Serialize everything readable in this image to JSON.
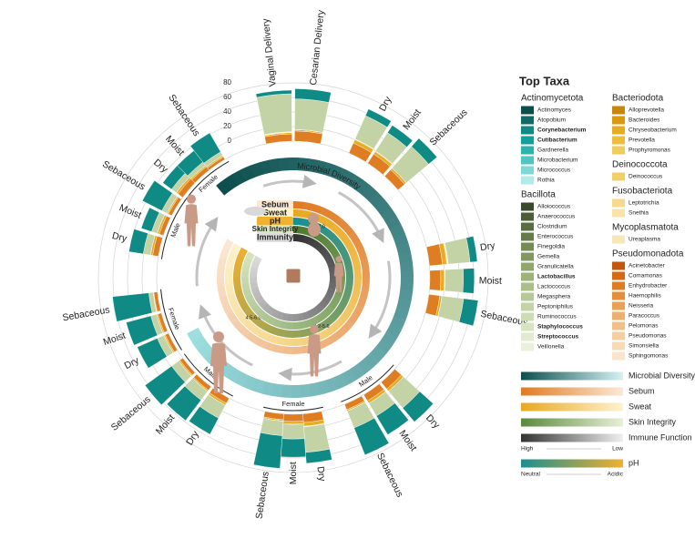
{
  "chart_data": {
    "type": "radial-stacked-bar",
    "ylim": [
      0,
      80
    ],
    "yticks": [
      0,
      20,
      40,
      60,
      80
    ],
    "grid": true,
    "legend_title": "Top Taxa",
    "series": [
      {
        "name": "Actinomycetota",
        "color": "#0f8a84",
        "taxa": [
          {
            "name": "Actinomyces",
            "color": "#0b4f4c"
          },
          {
            "name": "Atopobium",
            "color": "#0e6b66"
          },
          {
            "name": "Corynebacterium",
            "color": "#0f8a84",
            "bold": true
          },
          {
            "name": "Cutibacterium",
            "color": "#11a09a",
            "bold": true
          },
          {
            "name": "Gardnerella",
            "color": "#2bb3ad"
          },
          {
            "name": "Microbacterium",
            "color": "#4fc6c2"
          },
          {
            "name": "Micrococcus",
            "color": "#7dd8d6"
          },
          {
            "name": "Rothia",
            "color": "#b2eaea"
          }
        ]
      },
      {
        "name": "Bacillota",
        "color": "#c3d3a5",
        "taxa": [
          {
            "name": "Alloiococcus",
            "color": "#3b4a2d"
          },
          {
            "name": "Anaerococcus",
            "color": "#4b5e37"
          },
          {
            "name": "Clostridium",
            "color": "#586d40"
          },
          {
            "name": "Enterococcus",
            "color": "#657c4a"
          },
          {
            "name": "Finegoldia",
            "color": "#738b55"
          },
          {
            "name": "Gemella",
            "color": "#819960"
          },
          {
            "name": "Granulicatella",
            "color": "#8fa66d"
          },
          {
            "name": "Lactobacillus",
            "color": "#9db37a",
            "bold": true
          },
          {
            "name": "Lactococcus",
            "color": "#aabf88"
          },
          {
            "name": "Megasphera",
            "color": "#b7c996"
          },
          {
            "name": "Peptoniphilus",
            "color": "#c3d3a5"
          },
          {
            "name": "Ruminococcus",
            "color": "#cedcb4"
          },
          {
            "name": "Staphylococcus",
            "color": "#d8e3c2",
            "bold": true
          },
          {
            "name": "Streptococcus",
            "color": "#e2eacf",
            "bold": true
          },
          {
            "name": "Veillonella",
            "color": "#eaf0dc"
          }
        ]
      },
      {
        "name": "Bacteriodota",
        "color": "#e6ad22",
        "taxa": [
          {
            "name": "Alloprevotella",
            "color": "#c8860b"
          },
          {
            "name": "Bacteroides",
            "color": "#d99a10"
          },
          {
            "name": "Chryseobacterium",
            "color": "#e6ad22"
          },
          {
            "name": "Prevotella",
            "color": "#ecbd3e"
          },
          {
            "name": "Prophyromonas",
            "color": "#f1cb5c"
          }
        ]
      },
      {
        "name": "Deinococcota",
        "color": "#f3cf6a",
        "taxa": [
          {
            "name": "Deinococcus",
            "color": "#f3cf6a"
          }
        ]
      },
      {
        "name": "Fusobacteriota",
        "color": "#f6d98a",
        "taxa": [
          {
            "name": "Leptotrichia",
            "color": "#f6d98a"
          },
          {
            "name": "Snethia",
            "color": "#f8e3a8"
          }
        ]
      },
      {
        "name": "Mycoplasmatota",
        "color": "#f9e7b8",
        "taxa": [
          {
            "name": "Ureaplasma",
            "color": "#f9e7b8"
          }
        ]
      },
      {
        "name": "Pseudomonadota",
        "color": "#df7d22",
        "taxa": [
          {
            "name": "Acinetobacter",
            "color": "#c2580c"
          },
          {
            "name": "Comamonas",
            "color": "#d46a14"
          },
          {
            "name": "Enhydrobacter",
            "color": "#df7d22"
          },
          {
            "name": "Haemophilis",
            "color": "#e58e3a"
          },
          {
            "name": "Neisseria",
            "color": "#eaa055"
          },
          {
            "name": "Paracoccus",
            "color": "#eeb06e"
          },
          {
            "name": "Pelomonas",
            "color": "#f1bf87"
          },
          {
            "name": "Pseudomonas",
            "color": "#f4cda0"
          },
          {
            "name": "Simonsiella",
            "color": "#f7dab8"
          },
          {
            "name": "Sphingomonas",
            "color": "#f9e5ce"
          }
        ]
      }
    ],
    "groups": [
      {
        "bars": [
          {
            "name": "Vaginal Delivery",
            "values": [
              5,
              52,
              2,
              0,
              0,
              1,
              10
            ]
          },
          {
            "name": "Cesarian Delivery",
            "values": [
              14,
              42,
              2,
              0,
              0,
              0,
              14
            ]
          }
        ]
      },
      {
        "bars": [
          {
            "name": "Dry",
            "values": [
              10,
              35,
              5,
              1,
              0,
              0,
              15
            ]
          },
          {
            "name": "Moist",
            "values": [
              12,
              30,
              4,
              1,
              0,
              0,
              15
            ]
          },
          {
            "name": "Sebaceous",
            "values": [
              15,
              40,
              3,
              0,
              0,
              0,
              12
            ]
          }
        ]
      },
      {
        "bars": [
          {
            "name": "Dry",
            "values": [
              10,
              30,
              6,
              1,
              1,
              0,
              18
            ]
          },
          {
            "name": "Moist",
            "values": [
              15,
              25,
              5,
              1,
              0,
              0,
              15
            ]
          },
          {
            "name": "Sebaceous",
            "values": [
              20,
              30,
              3,
              0,
              0,
              0,
              15
            ]
          }
        ]
      },
      {
        "label": "Male",
        "bars": [
          {
            "name": "Dry",
            "values": [
              25,
              30,
              4,
              0,
              0,
              0,
              12
            ]
          },
          {
            "name": "Moist",
            "values": [
              30,
              20,
              4,
              0,
              0,
              0,
              10
            ]
          },
          {
            "name": "Sebaceous",
            "values": [
              40,
              25,
              2,
              0,
              0,
              0,
              8
            ]
          }
        ]
      },
      {
        "label": "Female",
        "bars": [
          {
            "name": "Dry",
            "values": [
              15,
              35,
              5,
              1,
              0,
              0,
              12
            ]
          },
          {
            "name": "Moist",
            "values": [
              25,
              20,
              4,
              0,
              0,
              0,
              10
            ]
          },
          {
            "name": "Sebaceous",
            "values": [
              45,
              20,
              2,
              0,
              0,
              0,
              8
            ]
          }
        ]
      },
      {
        "label": "Male",
        "bars": [
          {
            "name": "Dry",
            "values": [
              25,
              20,
              3,
              0,
              0,
              0,
              8
            ]
          },
          {
            "name": "Moist",
            "values": [
              35,
              15,
              2,
              0,
              0,
              0,
              6
            ]
          },
          {
            "name": "Sebaceous",
            "values": [
              45,
              12,
              2,
              0,
              0,
              0,
              5
            ]
          }
        ]
      },
      {
        "label": "Female",
        "bars": [
          {
            "name": "Dry",
            "values": [
              30,
              10,
              2,
              0,
              0,
              0,
              5
            ]
          },
          {
            "name": "Moist",
            "values": [
              35,
              8,
              2,
              0,
              0,
              0,
              5
            ]
          },
          {
            "name": "Sebaceous",
            "values": [
              50,
              6,
              1,
              0,
              0,
              0,
              5
            ]
          }
        ]
      },
      {
        "label": "Male",
        "bars": [
          {
            "name": "Dry",
            "values": [
              20,
              10,
              3,
              0,
              0,
              0,
              8
            ]
          },
          {
            "name": "Moist",
            "values": [
              15,
              8,
              3,
              0,
              0,
              0,
              6
            ]
          },
          {
            "name": "Sebaceous",
            "values": [
              30,
              8,
              2,
              0,
              0,
              0,
              5
            ]
          }
        ]
      },
      {
        "label": "Female",
        "bars": [
          {
            "name": "Dry",
            "values": [
              15,
              8,
              3,
              0,
              0,
              0,
              8
            ]
          },
          {
            "name": "Moist",
            "values": [
              20,
              6,
              2,
              0,
              0,
              0,
              6
            ]
          },
          {
            "name": "Sebaceous",
            "values": [
              30,
              6,
              2,
              0,
              0,
              0,
              4
            ]
          }
        ]
      }
    ],
    "diversity_ring": {
      "label": "Microbial Diversity",
      "colors": [
        "#0d4f4f",
        "#9fe0e3"
      ]
    },
    "rings": [
      {
        "label": "Sebum",
        "colors": [
          "#e07b22",
          "#fbe9d6"
        ]
      },
      {
        "label": "Sweat",
        "colors": [
          "#e9a820",
          "#fdf3d0"
        ]
      },
      {
        "label": "pH",
        "colors": [
          "#1a8f8f",
          "#f0b030"
        ],
        "ranges": [
          "5.5-7.0",
          "4.5-6.0",
          "4.2-5.6"
        ]
      },
      {
        "label": "Skin Integrity",
        "colors": [
          "#4d7a2e",
          "#d7e6c0"
        ]
      },
      {
        "label": "Immunity",
        "colors": [
          "#333333",
          "#dddddd"
        ]
      }
    ],
    "gradient_legend": [
      {
        "label": "Microbial Diversity",
        "colors": [
          "#0d4f4f",
          "#d6f2f3"
        ]
      },
      {
        "label": "Sebum",
        "colors": [
          "#e07b22",
          "#fbe9d6"
        ]
      },
      {
        "label": "Sweat",
        "colors": [
          "#e9a820",
          "#fdf3d0"
        ]
      },
      {
        "label": "Skin Integrity",
        "colors": [
          "#5a8a3a",
          "#e8efd8"
        ]
      },
      {
        "label": "Immune Function",
        "colors": [
          "#333333",
          "#f0f0f0"
        ],
        "ends": [
          "High",
          "Low"
        ]
      },
      {
        "label": "pH",
        "colors": [
          "#1a8f8f",
          "#f0b030"
        ],
        "ends": [
          "Neutral",
          "Acidic"
        ]
      }
    ]
  }
}
